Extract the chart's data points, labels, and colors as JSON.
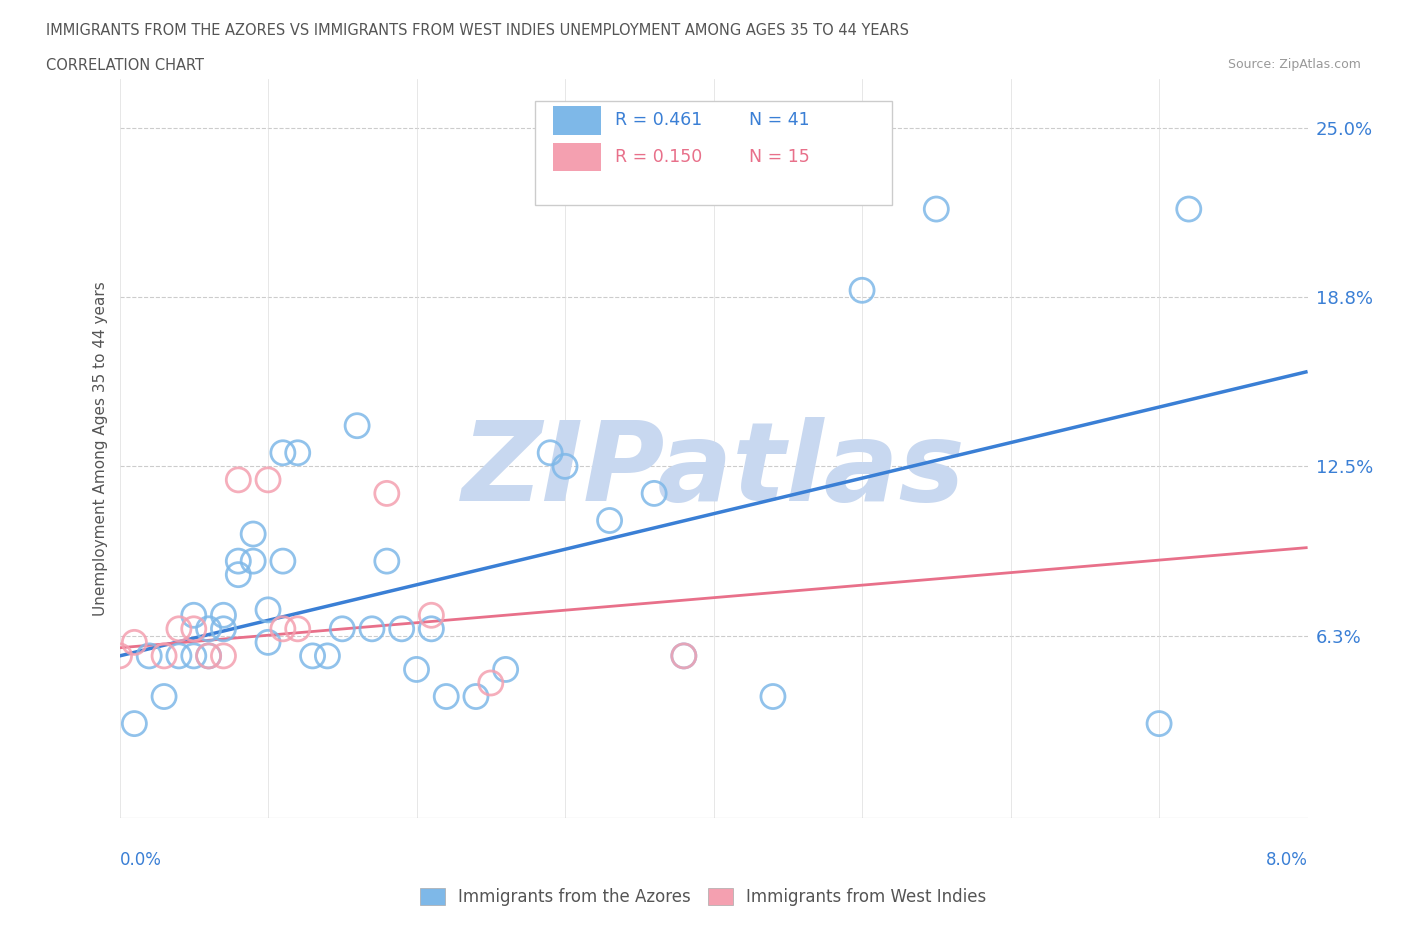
{
  "title_line1": "IMMIGRANTS FROM THE AZORES VS IMMIGRANTS FROM WEST INDIES UNEMPLOYMENT AMONG AGES 35 TO 44 YEARS",
  "title_line2": "CORRELATION CHART",
  "source": "Source: ZipAtlas.com",
  "ylabel": "Unemployment Among Ages 35 to 44 years",
  "ytick_vals": [
    0.0625,
    0.125,
    0.1875,
    0.25
  ],
  "ytick_labels": [
    "6.3%",
    "12.5%",
    "18.8%",
    "25.0%"
  ],
  "xlim": [
    0.0,
    0.08
  ],
  "ylim": [
    -0.005,
    0.268
  ],
  "color_azores": "#7eb8e8",
  "color_westindies": "#f4a0b0",
  "color_azores_line": "#3a7fd5",
  "color_westindies_line": "#e8708a",
  "watermark": "ZIPatlas",
  "watermark_color": "#c8d8f0",
  "azores_x": [
    0.001,
    0.002,
    0.003,
    0.004,
    0.005,
    0.005,
    0.006,
    0.006,
    0.007,
    0.007,
    0.008,
    0.008,
    0.009,
    0.009,
    0.01,
    0.01,
    0.011,
    0.011,
    0.012,
    0.013,
    0.014,
    0.015,
    0.016,
    0.017,
    0.018,
    0.019,
    0.02,
    0.021,
    0.022,
    0.024,
    0.026,
    0.029,
    0.03,
    0.033,
    0.036,
    0.038,
    0.044,
    0.05,
    0.055,
    0.07,
    0.072
  ],
  "azores_y": [
    0.03,
    0.055,
    0.04,
    0.055,
    0.07,
    0.055,
    0.055,
    0.065,
    0.065,
    0.07,
    0.085,
    0.09,
    0.1,
    0.09,
    0.06,
    0.072,
    0.09,
    0.13,
    0.13,
    0.055,
    0.055,
    0.065,
    0.14,
    0.065,
    0.09,
    0.065,
    0.05,
    0.065,
    0.04,
    0.04,
    0.05,
    0.13,
    0.125,
    0.105,
    0.115,
    0.055,
    0.04,
    0.19,
    0.22,
    0.03,
    0.22
  ],
  "westindies_x": [
    0.0,
    0.001,
    0.003,
    0.004,
    0.005,
    0.006,
    0.007,
    0.008,
    0.01,
    0.011,
    0.012,
    0.018,
    0.021,
    0.025,
    0.038
  ],
  "westindies_y": [
    0.055,
    0.06,
    0.055,
    0.065,
    0.065,
    0.055,
    0.055,
    0.12,
    0.12,
    0.065,
    0.065,
    0.115,
    0.07,
    0.045,
    0.055
  ],
  "azores_trend": [
    0.0,
    0.08,
    0.055,
    0.16
  ],
  "westindies_trend": [
    0.0,
    0.08,
    0.058,
    0.095
  ],
  "xtick_positions": [
    0.0,
    0.01,
    0.02,
    0.03,
    0.04,
    0.05,
    0.06,
    0.07,
    0.08
  ]
}
